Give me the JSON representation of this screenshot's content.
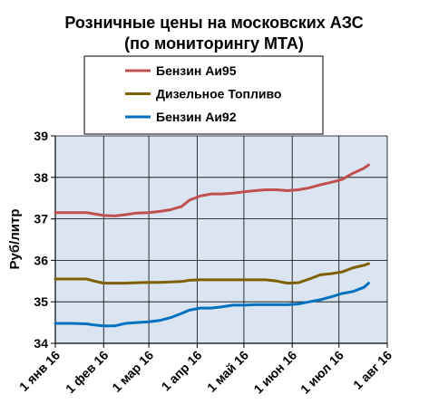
{
  "chart_data": {
    "type": "line",
    "title": "Розничные цены на московских АЗС",
    "subtitle": "(по мониторингу МТА)",
    "ylabel": "Руб/литр",
    "xlabel": "",
    "ylim": [
      34,
      39
    ],
    "yticks": [
      34,
      35,
      36,
      37,
      38,
      39
    ],
    "xlim": [
      "2016-01-01",
      "2016-08-01"
    ],
    "xticks": [
      {
        "date": "2016-01-01",
        "label": "1 янв 16"
      },
      {
        "date": "2016-02-01",
        "label": "1 фев 16"
      },
      {
        "date": "2016-03-01",
        "label": "1 мар 16"
      },
      {
        "date": "2016-04-01",
        "label": "1 апр 16"
      },
      {
        "date": "2016-05-01",
        "label": "1 май 16"
      },
      {
        "date": "2016-06-01",
        "label": "1 июн 16"
      },
      {
        "date": "2016-07-01",
        "label": "1 июл 16"
      },
      {
        "date": "2016-08-01",
        "label": "1 авг 16"
      }
    ],
    "grid": true,
    "legend_position": "top",
    "series": [
      {
        "name": "Бензин Аи95",
        "color": "#c0504d",
        "points": [
          [
            "2016-01-01",
            37.15
          ],
          [
            "2016-01-11",
            37.15
          ],
          [
            "2016-01-21",
            37.15
          ],
          [
            "2016-01-26",
            37.12
          ],
          [
            "2016-02-01",
            37.08
          ],
          [
            "2016-02-08",
            37.07
          ],
          [
            "2016-02-15",
            37.1
          ],
          [
            "2016-02-22",
            37.14
          ],
          [
            "2016-03-01",
            37.15
          ],
          [
            "2016-03-08",
            37.18
          ],
          [
            "2016-03-15",
            37.22
          ],
          [
            "2016-03-22",
            37.3
          ],
          [
            "2016-03-27",
            37.45
          ],
          [
            "2016-04-03",
            37.55
          ],
          [
            "2016-04-10",
            37.6
          ],
          [
            "2016-04-17",
            37.6
          ],
          [
            "2016-04-24",
            37.62
          ],
          [
            "2016-05-01",
            37.65
          ],
          [
            "2016-05-08",
            37.68
          ],
          [
            "2016-05-15",
            37.7
          ],
          [
            "2016-05-22",
            37.7
          ],
          [
            "2016-05-29",
            37.68
          ],
          [
            "2016-06-05",
            37.7
          ],
          [
            "2016-06-12",
            37.75
          ],
          [
            "2016-06-19",
            37.82
          ],
          [
            "2016-06-26",
            37.88
          ],
          [
            "2016-07-03",
            37.95
          ],
          [
            "2016-07-10",
            38.1
          ],
          [
            "2016-07-17",
            38.22
          ],
          [
            "2016-07-20",
            38.3
          ]
        ]
      },
      {
        "name": "Дизельное Топливо",
        "color": "#7f6000",
        "points": [
          [
            "2016-01-01",
            35.55
          ],
          [
            "2016-01-11",
            35.55
          ],
          [
            "2016-01-21",
            35.55
          ],
          [
            "2016-01-26",
            35.5
          ],
          [
            "2016-02-01",
            35.45
          ],
          [
            "2016-02-08",
            35.45
          ],
          [
            "2016-02-15",
            35.45
          ],
          [
            "2016-02-22",
            35.46
          ],
          [
            "2016-03-01",
            35.47
          ],
          [
            "2016-03-08",
            35.47
          ],
          [
            "2016-03-15",
            35.48
          ],
          [
            "2016-03-22",
            35.49
          ],
          [
            "2016-03-27",
            35.52
          ],
          [
            "2016-04-03",
            35.53
          ],
          [
            "2016-04-10",
            35.53
          ],
          [
            "2016-04-17",
            35.53
          ],
          [
            "2016-04-24",
            35.53
          ],
          [
            "2016-05-01",
            35.53
          ],
          [
            "2016-05-08",
            35.53
          ],
          [
            "2016-05-15",
            35.53
          ],
          [
            "2016-05-22",
            35.5
          ],
          [
            "2016-05-29",
            35.45
          ],
          [
            "2016-06-05",
            35.46
          ],
          [
            "2016-06-12",
            35.55
          ],
          [
            "2016-06-19",
            35.65
          ],
          [
            "2016-06-26",
            35.68
          ],
          [
            "2016-07-03",
            35.72
          ],
          [
            "2016-07-10",
            35.82
          ],
          [
            "2016-07-17",
            35.88
          ],
          [
            "2016-07-20",
            35.92
          ]
        ]
      },
      {
        "name": "Бензин Аи92",
        "color": "#0070c0",
        "points": [
          [
            "2016-01-01",
            34.48
          ],
          [
            "2016-01-11",
            34.48
          ],
          [
            "2016-01-21",
            34.47
          ],
          [
            "2016-01-26",
            34.44
          ],
          [
            "2016-02-01",
            34.42
          ],
          [
            "2016-02-08",
            34.42
          ],
          [
            "2016-02-15",
            34.48
          ],
          [
            "2016-02-22",
            34.5
          ],
          [
            "2016-03-01",
            34.52
          ],
          [
            "2016-03-08",
            34.55
          ],
          [
            "2016-03-15",
            34.62
          ],
          [
            "2016-03-22",
            34.72
          ],
          [
            "2016-03-27",
            34.8
          ],
          [
            "2016-04-03",
            34.85
          ],
          [
            "2016-04-10",
            34.85
          ],
          [
            "2016-04-17",
            34.88
          ],
          [
            "2016-04-24",
            34.92
          ],
          [
            "2016-05-01",
            34.92
          ],
          [
            "2016-05-08",
            34.93
          ],
          [
            "2016-05-15",
            34.93
          ],
          [
            "2016-05-22",
            34.93
          ],
          [
            "2016-05-29",
            34.93
          ],
          [
            "2016-06-05",
            34.95
          ],
          [
            "2016-06-12",
            35.0
          ],
          [
            "2016-06-19",
            35.05
          ],
          [
            "2016-06-26",
            35.12
          ],
          [
            "2016-07-03",
            35.2
          ],
          [
            "2016-07-10",
            35.25
          ],
          [
            "2016-07-17",
            35.35
          ],
          [
            "2016-07-20",
            35.45
          ]
        ]
      }
    ]
  }
}
